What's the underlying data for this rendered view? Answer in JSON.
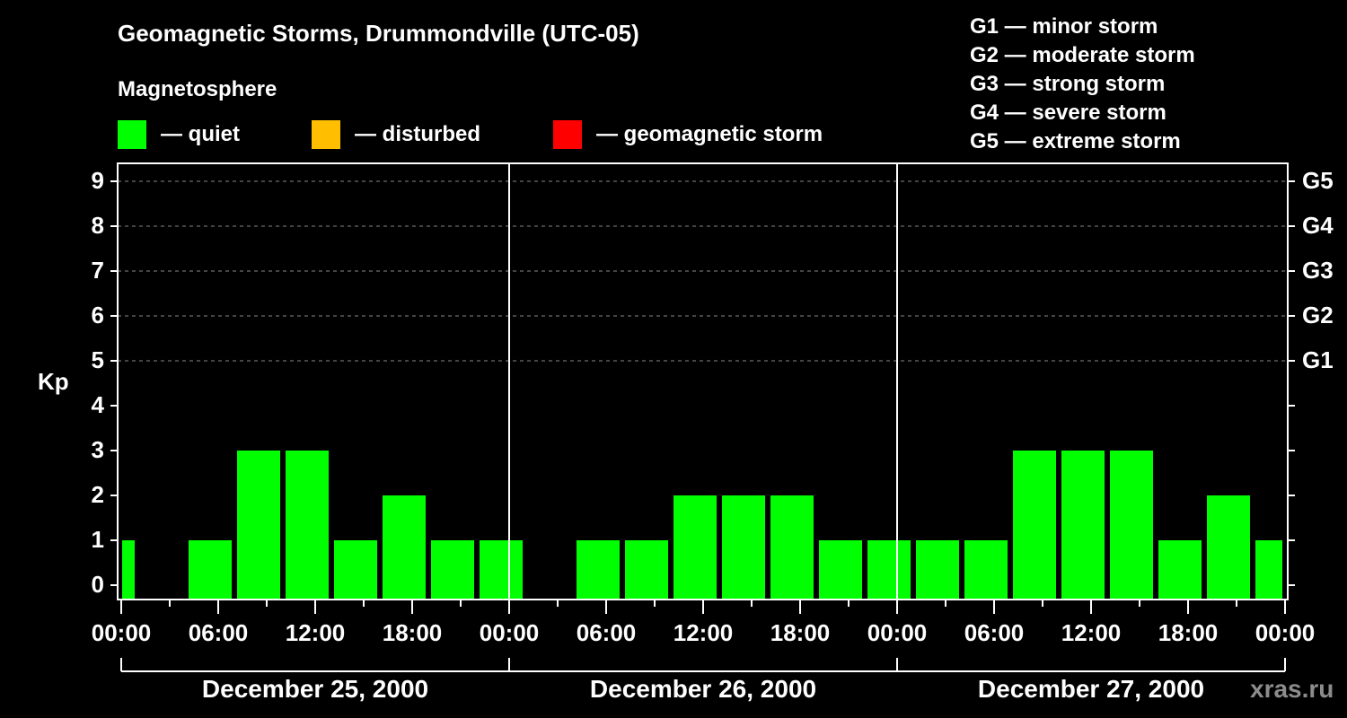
{
  "header": {
    "title": "Geomagnetic Storms, Drummondville (UTC-05)",
    "subtitle": "Magnetosphere"
  },
  "legend": [
    {
      "label": "— quiet",
      "color": "#00ff00"
    },
    {
      "label": "— disturbed",
      "color": "#ffbf00"
    },
    {
      "label": "— geomagnetic storm",
      "color": "#ff0000"
    }
  ],
  "gscale_legend": [
    "G1 — minor storm",
    "G2 — moderate storm",
    "G3 — strong storm",
    "G4 — severe storm",
    "G5 — extreme storm"
  ],
  "axes": {
    "ylabel": "Kp",
    "yticks": [
      "0",
      "1",
      "2",
      "3",
      "4",
      "5",
      "6",
      "7",
      "8",
      "9"
    ],
    "gticks": [
      "G1",
      "G2",
      "G3",
      "G4",
      "G5"
    ],
    "xticks": [
      "00:00",
      "06:00",
      "12:00",
      "18:00",
      "00:00",
      "06:00",
      "12:00",
      "18:00",
      "00:00",
      "06:00",
      "12:00",
      "18:00",
      "00:00"
    ],
    "days": [
      "December 25, 2000",
      "December 26, 2000",
      "December 27, 2000"
    ]
  },
  "watermark": "xras.ru",
  "chart_data": {
    "type": "bar",
    "title": "Geomagnetic Storms, Drummondville (UTC-05)",
    "xlabel": "",
    "ylabel": "Kp",
    "ylim": [
      0,
      9
    ],
    "grid": "dashed horizontal at Kp 5-9",
    "legend_position": "top",
    "categories": [
      "Dec 25 00:00-01:00",
      "Dec 25 01:00-04:00",
      "Dec 25 04:00-07:00",
      "Dec 25 07:00-10:00",
      "Dec 25 10:00-13:00",
      "Dec 25 13:00-16:00",
      "Dec 25 16:00-19:00",
      "Dec 25 19:00-22:00",
      "Dec 25 22:00-Dec 26 01:00",
      "Dec 26 01:00-04:00",
      "Dec 26 04:00-07:00",
      "Dec 26 07:00-10:00",
      "Dec 26 10:00-13:00",
      "Dec 26 13:00-16:00",
      "Dec 26 16:00-19:00",
      "Dec 26 19:00-22:00",
      "Dec 26 22:00-Dec 27 01:00",
      "Dec 27 01:00-04:00",
      "Dec 27 04:00-07:00",
      "Dec 27 07:00-10:00",
      "Dec 27 10:00-13:00",
      "Dec 27 13:00-16:00",
      "Dec 27 16:00-19:00",
      "Dec 27 19:00-22:00",
      "Dec 27 22:00-24:00"
    ],
    "values": [
      1,
      0,
      1,
      3,
      3,
      1,
      2,
      1,
      1,
      0,
      1,
      1,
      2,
      2,
      2,
      1,
      1,
      1,
      1,
      3,
      3,
      3,
      1,
      2,
      1
    ],
    "colors_legend": {
      "quiet": "#00ff00",
      "disturbed": "#ffbf00",
      "geomagnetic storm": "#ff0000"
    },
    "right_axis": {
      "G1": 5,
      "G2": 6,
      "G3": 7,
      "G4": 8,
      "G5": 9
    }
  }
}
